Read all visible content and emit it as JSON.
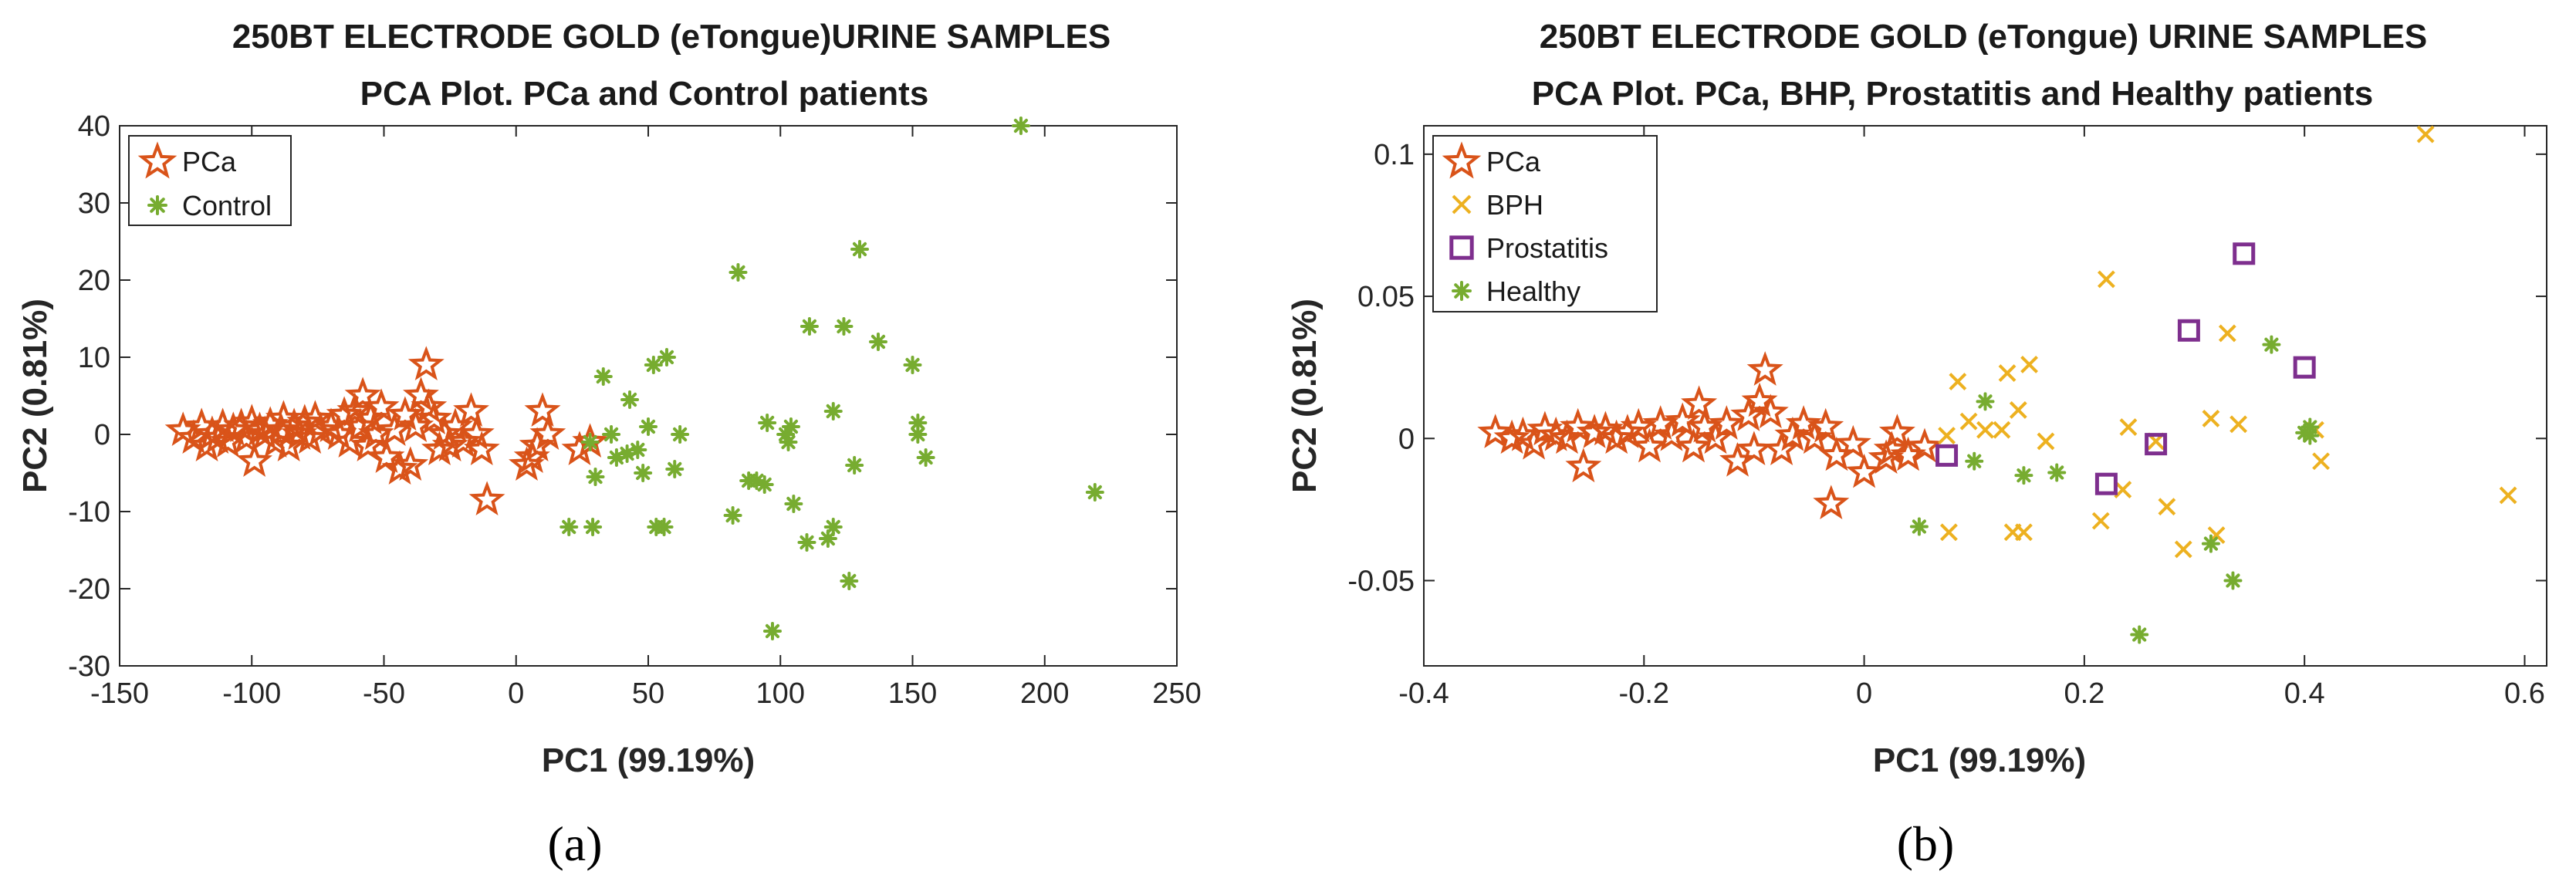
{
  "colors": {
    "pca": "#D95319",
    "control": "#77AC30",
    "bph": "#EDB120",
    "prostatitis": "#7E2F8E",
    "axis": "#262626"
  },
  "chart_data": [
    {
      "type": "scatter",
      "panel_label": "(a)",
      "title": "250BT ELECTRODE GOLD (eTongue)URINE SAMPLES",
      "subtitle": "PCA Plot. PCa and Control patients",
      "xlabel": "PC1 (99.19%)",
      "ylabel": "PC2 (0.81%)",
      "xlim": [
        -150,
        250
      ],
      "ylim": [
        -30,
        40
      ],
      "xticks": [
        -150,
        -100,
        -50,
        0,
        50,
        100,
        150,
        200,
        250
      ],
      "xtick_labels": [
        "-150",
        "-100",
        "-50",
        "0",
        "50",
        "100",
        "150",
        "200",
        "250"
      ],
      "yticks": [
        -30,
        -20,
        -10,
        0,
        10,
        20,
        30,
        40
      ],
      "ytick_labels": [
        "-30",
        "-20",
        "-10",
        "0",
        "10",
        "20",
        "30",
        "40"
      ],
      "legend_position": "top-left",
      "series": [
        {
          "name": "PCa",
          "marker": "star",
          "color": "#D95319",
          "points": [
            [
              -126,
              0.5
            ],
            [
              -122,
              -0.5
            ],
            [
              -119,
              1
            ],
            [
              -117,
              -1.5
            ],
            [
              -115,
              0
            ],
            [
              -113,
              -0.5
            ],
            [
              -111,
              1
            ],
            [
              -109,
              -1
            ],
            [
              -107,
              0.5
            ],
            [
              -104,
              1
            ],
            [
              -102,
              -0.5
            ],
            [
              -100,
              1.5
            ],
            [
              -99,
              -3.5
            ],
            [
              -97,
              0.5
            ],
            [
              -95,
              0
            ],
            [
              -93,
              1.2
            ],
            [
              -91,
              -1
            ],
            [
              -89,
              0.5
            ],
            [
              -88,
              2
            ],
            [
              -86,
              -1.5
            ],
            [
              -84,
              1
            ],
            [
              -82,
              0
            ],
            [
              -80,
              1.5
            ],
            [
              -78,
              -0.5
            ],
            [
              -76,
              2
            ],
            [
              -74,
              0.5
            ],
            [
              -70,
              1
            ],
            [
              -67,
              0
            ],
            [
              -65,
              2.5
            ],
            [
              -63,
              -1
            ],
            [
              -61,
              3
            ],
            [
              -59,
              1
            ],
            [
              -58,
              5
            ],
            [
              -56,
              -1.5
            ],
            [
              -55,
              2
            ],
            [
              -53,
              0
            ],
            [
              -51,
              3.5
            ],
            [
              -49,
              -3
            ],
            [
              -46,
              0.5
            ],
            [
              -44,
              -4.5
            ],
            [
              -42,
              2.5
            ],
            [
              -40,
              -4
            ],
            [
              -38,
              1
            ],
            [
              -36,
              5
            ],
            [
              -34,
              9
            ],
            [
              -33,
              3.5
            ],
            [
              -31,
              2
            ],
            [
              -29,
              -2
            ],
            [
              -27,
              0
            ],
            [
              -25,
              -1.5
            ],
            [
              -23,
              1
            ],
            [
              -20,
              -1
            ],
            [
              -17,
              3
            ],
            [
              -15,
              0
            ],
            [
              -13,
              -2
            ],
            [
              -11,
              -8.5
            ],
            [
              4,
              -4
            ],
            [
              6,
              -3
            ],
            [
              8,
              -1.5
            ],
            [
              10,
              3
            ],
            [
              12,
              0
            ],
            [
              24,
              -2
            ],
            [
              28,
              -1
            ]
          ]
        },
        {
          "name": "Control",
          "marker": "asterisk",
          "color": "#77AC30",
          "points": [
            [
              20,
              -12
            ],
            [
              28,
              -1
            ],
            [
              29,
              -12
            ],
            [
              30,
              -5.5
            ],
            [
              33,
              7.5
            ],
            [
              36,
              0
            ],
            [
              38,
              -3
            ],
            [
              42,
              -2.5
            ],
            [
              43,
              4.5
            ],
            [
              46,
              -2
            ],
            [
              48,
              -5
            ],
            [
              50,
              1
            ],
            [
              52,
              9
            ],
            [
              53,
              -12
            ],
            [
              56,
              -12
            ],
            [
              57,
              10
            ],
            [
              60,
              -4.5
            ],
            [
              62,
              0
            ],
            [
              82,
              -10.5
            ],
            [
              84,
              21
            ],
            [
              88,
              -6
            ],
            [
              91,
              -6
            ],
            [
              94,
              -6.5
            ],
            [
              95,
              1.5
            ],
            [
              97,
              -25.5
            ],
            [
              102,
              0
            ],
            [
              103,
              -1
            ],
            [
              104,
              1
            ],
            [
              105,
              -9
            ],
            [
              110,
              -14
            ],
            [
              111,
              14
            ],
            [
              118,
              -13.5
            ],
            [
              120,
              -12
            ],
            [
              120,
              3
            ],
            [
              124,
              14
            ],
            [
              126,
              -19
            ],
            [
              128,
              -4
            ],
            [
              130,
              24
            ],
            [
              137,
              12
            ],
            [
              150,
              9
            ],
            [
              152,
              0
            ],
            [
              152,
              1.5
            ],
            [
              155,
              -3
            ],
            [
              191,
              40
            ],
            [
              219,
              -7.5
            ]
          ]
        }
      ]
    },
    {
      "type": "scatter",
      "panel_label": "(b)",
      "title": "250BT ELECTRODE GOLD (eTongue) URINE SAMPLES",
      "subtitle": "PCA Plot.  PCa, BHP, Prostatitis and Healthy patients",
      "xlabel": "PC1 (99.19%)",
      "ylabel": "PC2 (0.81%)",
      "xlim": [
        -0.4,
        0.62
      ],
      "ylim": [
        -0.08,
        0.11
      ],
      "xticks": [
        -0.4,
        -0.2,
        0,
        0.2,
        0.4,
        0.6
      ],
      "xtick_labels": [
        "-0.4",
        "-0.2",
        "0",
        "0.2",
        "0.4",
        "0.6"
      ],
      "yticks": [
        -0.05,
        0,
        0.05,
        0.1
      ],
      "ytick_labels": [
        "-0.05",
        "0",
        "0.05",
        "0.1"
      ],
      "legend_position": "top-left",
      "series": [
        {
          "name": "PCa",
          "marker": "star",
          "color": "#D95319",
          "points": [
            [
              -0.335,
              0.002
            ],
            [
              -0.32,
              0
            ],
            [
              -0.31,
              0.001
            ],
            [
              -0.3,
              -0.002
            ],
            [
              -0.29,
              0.003
            ],
            [
              -0.28,
              0.001
            ],
            [
              -0.27,
              0
            ],
            [
              -0.26,
              0.004
            ],
            [
              -0.255,
              -0.01
            ],
            [
              -0.245,
              0.002
            ],
            [
              -0.235,
              0.003
            ],
            [
              -0.225,
              0
            ],
            [
              -0.215,
              0.002
            ],
            [
              -0.205,
              0.004
            ],
            [
              -0.195,
              -0.003
            ],
            [
              -0.185,
              0.005
            ],
            [
              -0.175,
              0.001
            ],
            [
              -0.165,
              0.006
            ],
            [
              -0.155,
              -0.003
            ],
            [
              -0.15,
              0.012
            ],
            [
              -0.145,
              0.004
            ],
            [
              -0.135,
              0
            ],
            [
              -0.125,
              0.005
            ],
            [
              -0.115,
              -0.008
            ],
            [
              -0.105,
              0.008
            ],
            [
              -0.1,
              -0.004
            ],
            [
              -0.095,
              0.013
            ],
            [
              -0.09,
              0.024
            ],
            [
              -0.085,
              0.009
            ],
            [
              -0.075,
              -0.004
            ],
            [
              -0.065,
              0.001
            ],
            [
              -0.055,
              0.005
            ],
            [
              -0.045,
              0
            ],
            [
              -0.035,
              0.004
            ],
            [
              -0.03,
              -0.023
            ],
            [
              -0.025,
              -0.006
            ],
            [
              -0.01,
              -0.002
            ],
            [
              0,
              -0.012
            ],
            [
              0.02,
              -0.007
            ],
            [
              0.025,
              -0.004
            ],
            [
              0.03,
              0.002
            ],
            [
              0.04,
              -0.006
            ],
            [
              0.055,
              -0.003
            ]
          ]
        },
        {
          "name": "BPH",
          "marker": "x",
          "color": "#EDB120",
          "points": [
            [
              0.075,
              0.001
            ],
            [
              0.077,
              -0.033
            ],
            [
              0.085,
              0.02
            ],
            [
              0.095,
              0.006
            ],
            [
              0.11,
              0.003
            ],
            [
              0.125,
              0.003
            ],
            [
              0.13,
              0.023
            ],
            [
              0.135,
              -0.033
            ],
            [
              0.14,
              0.01
            ],
            [
              0.145,
              -0.033
            ],
            [
              0.15,
              0.026
            ],
            [
              0.165,
              -0.001
            ],
            [
              0.215,
              -0.029
            ],
            [
              0.22,
              0.056
            ],
            [
              0.235,
              -0.018
            ],
            [
              0.24,
              0.004
            ],
            [
              0.265,
              -0.001
            ],
            [
              0.275,
              -0.024
            ],
            [
              0.29,
              -0.039
            ],
            [
              0.315,
              0.007
            ],
            [
              0.32,
              -0.034
            ],
            [
              0.33,
              0.037
            ],
            [
              0.34,
              0.005
            ],
            [
              0.41,
              0.003
            ],
            [
              0.415,
              -0.008
            ],
            [
              0.51,
              0.107
            ],
            [
              0.585,
              -0.02
            ]
          ]
        },
        {
          "name": "Prostatitis",
          "marker": "square",
          "color": "#7E2F8E",
          "points": [
            [
              0.075,
              -0.006
            ],
            [
              0.22,
              -0.016
            ],
            [
              0.265,
              -0.002
            ],
            [
              0.295,
              0.038
            ],
            [
              0.345,
              0.065
            ],
            [
              0.4,
              0.025
            ]
          ]
        },
        {
          "name": "Healthy",
          "marker": "asterisk",
          "color": "#77AC30",
          "points": [
            [
              0.05,
              -0.031
            ],
            [
              0.1,
              -0.008
            ],
            [
              0.11,
              0.013
            ],
            [
              0.145,
              -0.013
            ],
            [
              0.175,
              -0.012
            ],
            [
              0.25,
              -0.069
            ],
            [
              0.315,
              -0.037
            ],
            [
              0.335,
              -0.05
            ],
            [
              0.37,
              0.033
            ],
            [
              0.4,
              0.002
            ],
            [
              0.405,
              0.004
            ],
            [
              0.405,
              0.001
            ]
          ]
        }
      ]
    }
  ]
}
